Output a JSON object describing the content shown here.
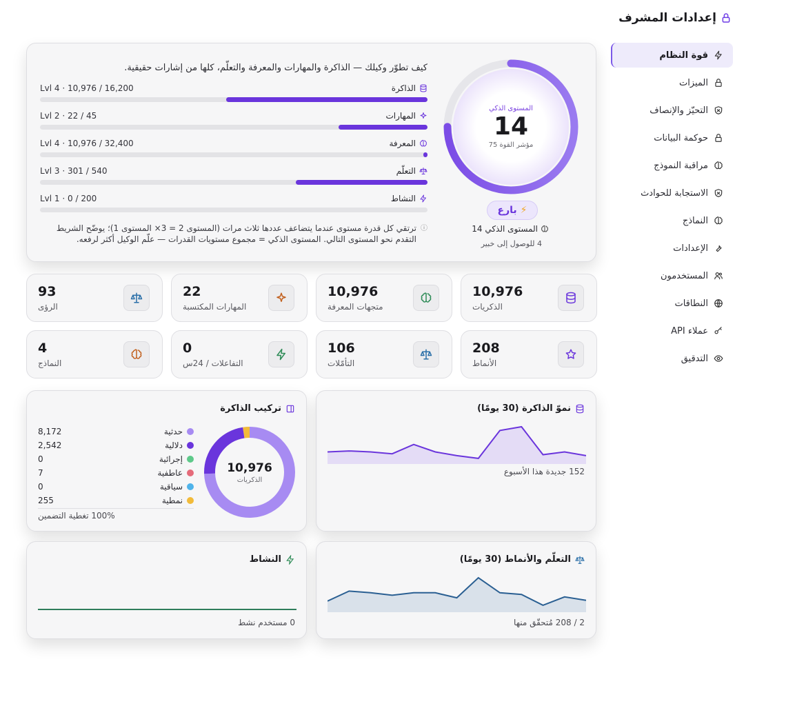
{
  "sidebar": {
    "title": "إعدادات المشرف",
    "items": [
      {
        "label": "قوة النظام",
        "icon": "bolt-icon",
        "active": true
      },
      {
        "label": "الميزات",
        "icon": "lock-icon"
      },
      {
        "label": "التحيّز والإنصاف",
        "icon": "shield-icon"
      },
      {
        "label": "حوكمة البيانات",
        "icon": "lock-icon"
      },
      {
        "label": "مراقبة النموذج",
        "icon": "brain-icon"
      },
      {
        "label": "الاستجابة للحوادث",
        "icon": "shield-icon"
      },
      {
        "label": "النماذج",
        "icon": "brain-icon"
      },
      {
        "label": "الإعدادات",
        "icon": "wrench-icon"
      },
      {
        "label": "المستخدمون",
        "icon": "users-icon"
      },
      {
        "label": "النطاقات",
        "icon": "globe-icon"
      },
      {
        "label": "عملاء API",
        "icon": "key-icon"
      },
      {
        "label": "التدقيق",
        "icon": "eye-icon"
      }
    ]
  },
  "hero": {
    "description": "كيف تطوّر وكيلك — الذاكرة والمهارات والمعرفة والتعلّم، كلها من إشارات حقيقية.",
    "bars": [
      {
        "label": "الذاكرة",
        "icon": "database-icon",
        "value": "Lvl 4 · 10,976 / 16,200",
        "progress": 0.52
      },
      {
        "label": "المهارات",
        "icon": "sparkle-icon",
        "value": "Lvl 2 · 22 / 45",
        "progress": 0.23
      },
      {
        "label": "المعرفة",
        "icon": "brain-icon",
        "value": "Lvl 4 · 10,976 / 32,400",
        "progress": 0.01
      },
      {
        "label": "التعلّم",
        "icon": "scale-icon",
        "value": "Lvl 3 · 301 / 540",
        "progress": 0.34
      },
      {
        "label": "النشاط",
        "icon": "bolt-icon",
        "value": "Lvl 1 · 0 / 200",
        "progress": 0
      }
    ],
    "note": "ترتقي كل قدرة مستوى عندما يتضاعف عددها ثلاث مرات (المستوى 2 = 3× المستوى 1)؛ يوضّح الشريط التقدم نحو المستوى التالي. المستوى الذكي = مجموع مستويات القدرات — علّم الوكيل أكثر لرفعه.",
    "ring": {
      "caption": "المستوى الذكي",
      "level": "14",
      "power": "مؤشر القوة 75",
      "progress": 0.75
    },
    "badge": "بارع",
    "level_line": "المستوى الذكي 14",
    "next_line": "4 للوصول إلى خبير"
  },
  "stats": [
    {
      "value": "10,976",
      "label": "الذكريات",
      "icon": "database-icon",
      "color": "#6a35dc"
    },
    {
      "value": "10,976",
      "label": "متجهات المعرفة",
      "icon": "brain-icon",
      "color": "#2e8b57"
    },
    {
      "value": "22",
      "label": "المهارات المكتسبة",
      "icon": "sparkle-icon",
      "color": "#c2611f"
    },
    {
      "value": "93",
      "label": "الرؤى",
      "icon": "scale-icon",
      "color": "#2a6fa8"
    },
    {
      "value": "208",
      "label": "الأنماط",
      "icon": "star-icon",
      "color": "#6a35dc"
    },
    {
      "value": "106",
      "label": "التأمّلات",
      "icon": "scale-icon",
      "color": "#2a6fa8"
    },
    {
      "value": "0",
      "label": "التفاعلات / 24س",
      "icon": "bolt-icon",
      "color": "#2e8b57"
    },
    {
      "value": "4",
      "label": "النماذج",
      "icon": "brain-icon",
      "color": "#c2611f"
    }
  ],
  "memory_growth": {
    "title": "نموّ الذاكرة (30 يومًا)",
    "footer": "152 جديدة هذا الأسبوع",
    "color": "#6a35dc",
    "chart_data": {
      "type": "area",
      "values": [
        10,
        11,
        10,
        8,
        18,
        10,
        6,
        3,
        33,
        37,
        7,
        10,
        6
      ]
    }
  },
  "memory_composition": {
    "title": "تركيب الذاكرة",
    "total": "10,976",
    "total_label": "الذكريات",
    "coverage": "100% تغطية التضمين",
    "chart_data": {
      "type": "pie",
      "categories": [
        "حدثية",
        "دلالية",
        "إجرائية",
        "عاطفية",
        "سياقية",
        "نمطية"
      ],
      "values": [
        8172,
        2542,
        0,
        7,
        0,
        255
      ],
      "colors": [
        "#a78bf2",
        "#6a35dc",
        "#5ec98a",
        "#e56b7a",
        "#4fb3ea",
        "#f2bb3a"
      ]
    },
    "display_values": [
      "8,172",
      "2,542",
      "0",
      "7",
      "0",
      "255"
    ]
  },
  "learning_patterns": {
    "title": "التعلّم والأنماط (30 يومًا)",
    "footer": "2 / 208 مُتحقّق منها",
    "color": "#2a5f92",
    "chart_data": {
      "type": "area",
      "values": [
        10,
        22,
        20,
        17,
        20,
        20,
        14,
        38,
        20,
        18,
        5,
        15,
        11
      ]
    }
  },
  "activity": {
    "title": "النشاط",
    "footer": "0 مستخدم نشط",
    "color": "#2e7d5b",
    "chart_data": {
      "type": "line",
      "values": [
        0,
        0,
        0,
        0,
        0,
        0,
        0,
        0,
        0,
        0,
        0,
        0,
        0
      ]
    }
  }
}
